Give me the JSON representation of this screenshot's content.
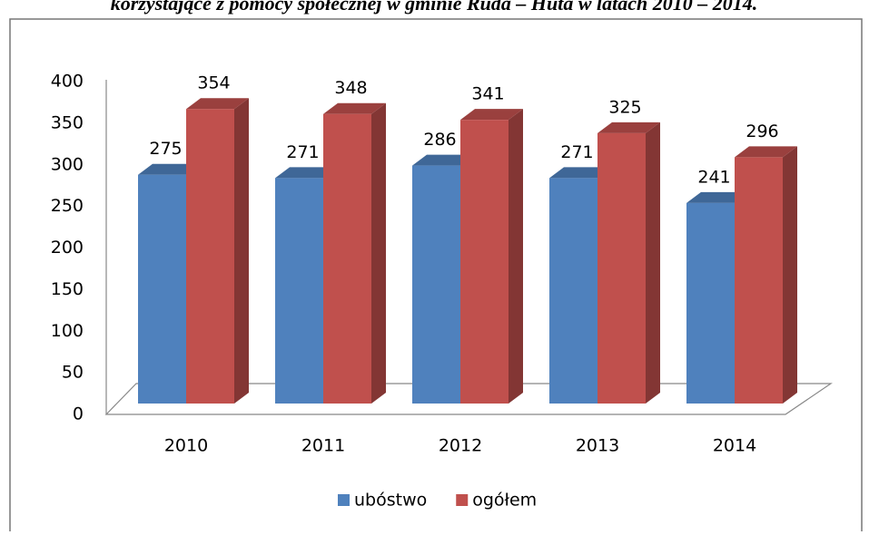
{
  "chart_data": {
    "type": "bar",
    "title": "korzystające z pomocy społecznej w gminie Ruda – Huta w latach 2010 – 2014.",
    "categories": [
      "2010",
      "2011",
      "2012",
      "2013",
      "2014"
    ],
    "series": [
      {
        "name": "ubóstwo",
        "color": "#4f81bd",
        "values": [
          275,
          271,
          286,
          271,
          241
        ]
      },
      {
        "name": "ogółem",
        "color": "#c0504d",
        "values": [
          354,
          348,
          341,
          325,
          296
        ]
      }
    ],
    "ylim": [
      0,
      400
    ],
    "yticks": [
      0,
      50,
      100,
      150,
      200,
      250,
      300,
      350,
      400
    ],
    "legend": "bottom"
  }
}
